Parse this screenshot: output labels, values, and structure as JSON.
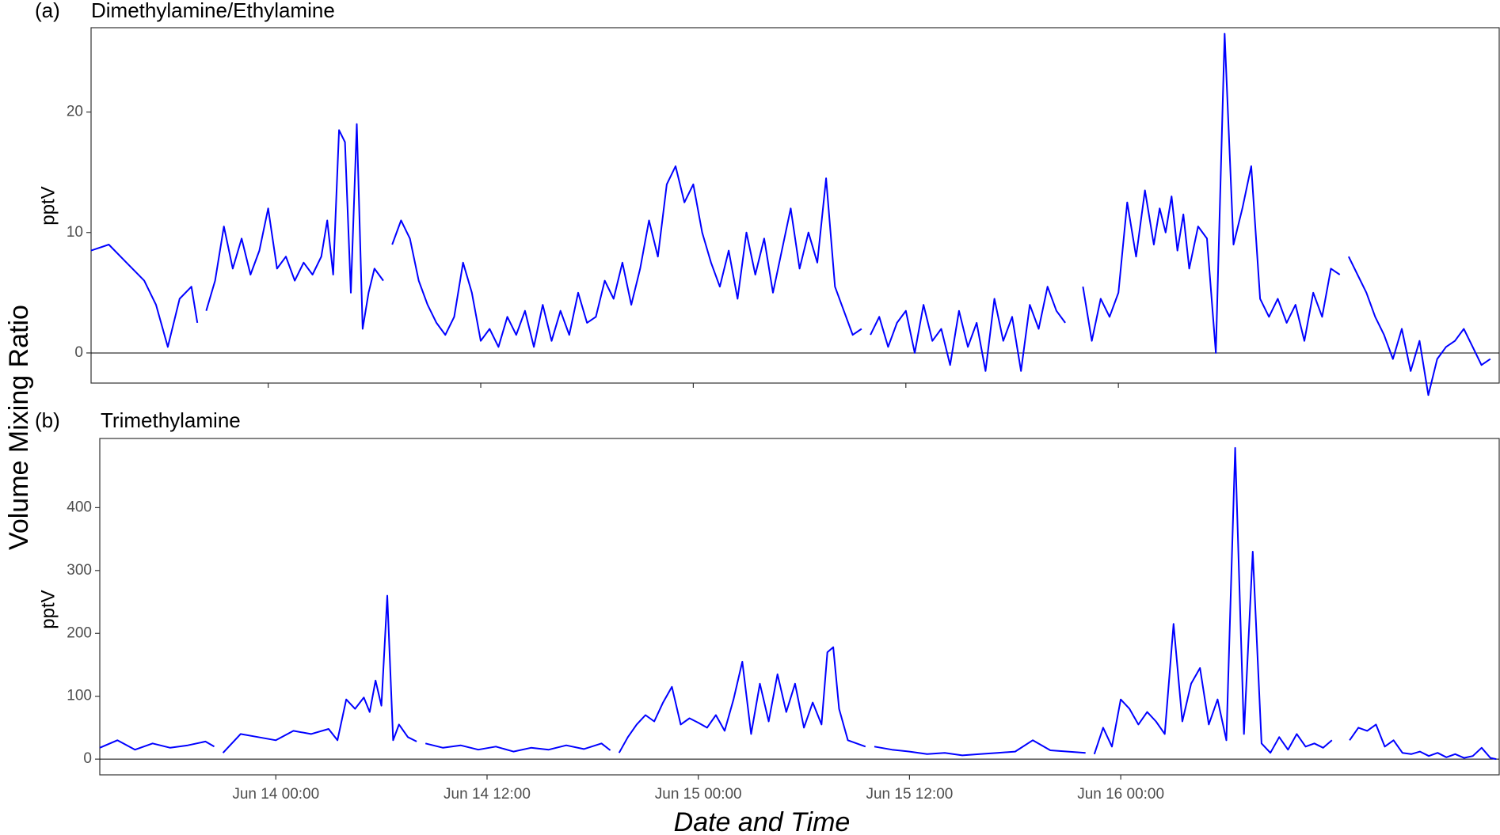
{
  "chart": {
    "shared_ylabel": "Volume Mixing Ratio",
    "xlabel": "Date and Time",
    "x_ticks": [
      "Jun 14 00:00",
      "Jun 14 12:00",
      "Jun 15 00:00",
      "Jun 15 12:00",
      "Jun 16 00:00"
    ],
    "line_color": "#0000ff"
  },
  "chart_data": [
    {
      "type": "line",
      "panel": "(a)",
      "title": "Dimethylamine/Ethylamine",
      "ylabel": "pptV",
      "ylim": [
        -2.5,
        27
      ],
      "yticks": [
        0,
        10,
        20
      ],
      "xlim": [
        "Jun 13 14:00",
        "Jun 16 21:30"
      ],
      "grid": false,
      "zero_line": true,
      "series": [
        {
          "segments": [
            {
              "x": [
                "Jun 13 14:00",
                "Jun 13 15:00",
                "Jun 13 16:00",
                "Jun 13 17:00",
                "Jun 13 17:40",
                "Jun 13 18:20",
                "Jun 13 19:00",
                "Jun 13 19:40",
                "Jun 13 20:00"
              ],
              "y": [
                8.5,
                9.0,
                7.5,
                6.0,
                4.0,
                0.5,
                4.5,
                5.5,
                2.5
              ]
            },
            {
              "x": [
                "Jun 13 20:30",
                "Jun 13 21:00",
                "Jun 13 21:30",
                "Jun 13 22:00",
                "Jun 13 22:30",
                "Jun 13 23:00",
                "Jun 13 23:30",
                "Jun 14 00:00",
                "Jun 14 00:30",
                "Jun 14 01:00",
                "Jun 14 01:30",
                "Jun 14 02:00",
                "Jun 14 02:30",
                "Jun 14 03:00",
                "Jun 14 03:20",
                "Jun 14 03:40",
                "Jun 14 04:00",
                "Jun 14 04:20",
                "Jun 14 04:40",
                "Jun 14 05:00",
                "Jun 14 05:20",
                "Jun 14 05:40",
                "Jun 14 06:00",
                "Jun 14 06:30"
              ],
              "y": [
                3.5,
                6.0,
                10.5,
                7.0,
                9.5,
                6.5,
                8.5,
                12.0,
                7.0,
                8.0,
                6.0,
                7.5,
                6.5,
                8.0,
                11.0,
                6.5,
                18.5,
                17.5,
                5.0,
                19.0,
                2.0,
                5.0,
                7.0,
                6.0
              ]
            },
            {
              "x": [
                "Jun 14 07:00",
                "Jun 14 07:30",
                "Jun 14 08:00",
                "Jun 14 08:30",
                "Jun 14 09:00",
                "Jun 14 09:30",
                "Jun 14 10:00",
                "Jun 14 10:30",
                "Jun 14 11:00",
                "Jun 14 11:30",
                "Jun 14 12:00",
                "Jun 14 12:30",
                "Jun 14 13:00",
                "Jun 14 13:30",
                "Jun 14 14:00",
                "Jun 14 14:30",
                "Jun 14 15:00",
                "Jun 14 15:30",
                "Jun 14 16:00",
                "Jun 14 16:30",
                "Jun 14 17:00",
                "Jun 14 17:30",
                "Jun 14 18:00",
                "Jun 14 18:30",
                "Jun 14 19:00",
                "Jun 14 19:30",
                "Jun 14 20:00",
                "Jun 14 20:30",
                "Jun 14 21:00",
                "Jun 14 21:30",
                "Jun 14 22:00",
                "Jun 14 22:30",
                "Jun 14 23:00",
                "Jun 14 23:30",
                "Jun 15 00:00",
                "Jun 15 00:30",
                "Jun 15 01:00",
                "Jun 15 01:30",
                "Jun 15 02:00",
                "Jun 15 02:30",
                "Jun 15 03:00",
                "Jun 15 03:30",
                "Jun 15 04:00",
                "Jun 15 04:30",
                "Jun 15 05:00",
                "Jun 15 05:30",
                "Jun 15 06:00",
                "Jun 15 06:30",
                "Jun 15 07:00",
                "Jun 15 07:30",
                "Jun 15 08:00",
                "Jun 15 08:30",
                "Jun 15 09:00",
                "Jun 15 09:30"
              ],
              "y": [
                9.0,
                11.0,
                9.5,
                6.0,
                4.0,
                2.5,
                1.5,
                3.0,
                7.5,
                5.0,
                1.0,
                2.0,
                0.5,
                3.0,
                1.5,
                3.5,
                0.5,
                4.0,
                1.0,
                3.5,
                1.5,
                5.0,
                2.5,
                3.0,
                6.0,
                4.5,
                7.5,
                4.0,
                7.0,
                11.0,
                8.0,
                14.0,
                15.5,
                12.5,
                14.0,
                10.0,
                7.5,
                5.5,
                8.5,
                4.5,
                10.0,
                6.5,
                9.5,
                5.0,
                8.5,
                12.0,
                7.0,
                10.0,
                7.5,
                14.5,
                5.5,
                3.5,
                1.5,
                2.0
              ]
            },
            {
              "x": [
                "Jun 15 10:00",
                "Jun 15 10:30",
                "Jun 15 11:00",
                "Jun 15 11:30",
                "Jun 15 12:00",
                "Jun 15 12:30",
                "Jun 15 13:00",
                "Jun 15 13:30",
                "Jun 15 14:00",
                "Jun 15 14:30",
                "Jun 15 15:00",
                "Jun 15 15:30",
                "Jun 15 16:00",
                "Jun 15 16:30",
                "Jun 15 17:00",
                "Jun 15 17:30",
                "Jun 15 18:00",
                "Jun 15 18:30",
                "Jun 15 19:00",
                "Jun 15 19:30",
                "Jun 15 20:00",
                "Jun 15 20:30",
                "Jun 15 21:00"
              ],
              "y": [
                1.5,
                3.0,
                0.5,
                2.5,
                3.5,
                0.0,
                4.0,
                1.0,
                2.0,
                -1.0,
                3.5,
                0.5,
                2.5,
                -1.5,
                4.5,
                1.0,
                3.0,
                -1.5,
                4.0,
                2.0,
                5.5,
                3.5,
                2.5
              ]
            },
            {
              "x": [
                "Jun 15 22:00",
                "Jun 15 22:30",
                "Jun 15 23:00",
                "Jun 15 23:30",
                "Jun 16 00:00",
                "Jun 16 00:30",
                "Jun 16 01:00",
                "Jun 16 01:30",
                "Jun 16 02:00",
                "Jun 16 02:20",
                "Jun 16 02:40",
                "Jun 16 03:00",
                "Jun 16 03:20",
                "Jun 16 03:40",
                "Jun 16 04:00",
                "Jun 16 04:30",
                "Jun 16 05:00",
                "Jun 16 05:30",
                "Jun 16 06:00",
                "Jun 16 06:30",
                "Jun 16 07:00",
                "Jun 16 07:30",
                "Jun 16 08:00",
                "Jun 16 08:30",
                "Jun 16 09:00",
                "Jun 16 09:30",
                "Jun 16 10:00",
                "Jun 16 10:30",
                "Jun 16 11:00",
                "Jun 16 11:30",
                "Jun 16 12:00",
                "Jun 16 12:30"
              ],
              "y": [
                5.5,
                1.0,
                4.5,
                3.0,
                5.0,
                12.5,
                8.0,
                13.5,
                9.0,
                12.0,
                10.0,
                13.0,
                8.5,
                11.5,
                7.0,
                10.5,
                9.5,
                0.0,
                26.5,
                9.0,
                12.0,
                15.5,
                4.5,
                3.0,
                4.5,
                2.5,
                4.0,
                1.0,
                5.0,
                3.0,
                7.0,
                6.5
              ]
            },
            {
              "x": [
                "Jun 16 13:00",
                "Jun 16 13:30",
                "Jun 16 14:00",
                "Jun 16 14:30",
                "Jun 16 15:00",
                "Jun 16 15:30",
                "Jun 16 16:00",
                "Jun 16 16:30",
                "Jun 16 17:00",
                "Jun 16 17:30",
                "Jun 16 18:00",
                "Jun 16 18:30",
                "Jun 16 19:00",
                "Jun 16 19:30",
                "Jun 16 20:00",
                "Jun 16 20:30",
                "Jun 16 21:00"
              ],
              "y": [
                8.0,
                6.5,
                5.0,
                3.0,
                1.5,
                -0.5,
                2.0,
                -1.5,
                1.0,
                -3.5,
                -0.5,
                0.5,
                1.0,
                2.0,
                0.5,
                -1.0,
                -0.5
              ]
            }
          ]
        }
      ]
    },
    {
      "type": "line",
      "panel": "(b)",
      "title": "Trimethylamine",
      "ylabel": "pptV",
      "ylim": [
        -25,
        510
      ],
      "yticks": [
        0,
        100,
        200,
        300,
        400
      ],
      "xlim": [
        "Jun 13 14:00",
        "Jun 16 21:30"
      ],
      "grid": false,
      "zero_line": true,
      "series": [
        {
          "segments": [
            {
              "x": [
                "Jun 13 14:00",
                "Jun 13 15:00",
                "Jun 13 16:00",
                "Jun 13 17:00",
                "Jun 13 18:00",
                "Jun 13 19:00",
                "Jun 13 20:00",
                "Jun 13 20:30"
              ],
              "y": [
                18,
                30,
                15,
                25,
                18,
                22,
                28,
                20
              ]
            },
            {
              "x": [
                "Jun 13 21:00",
                "Jun 13 22:00",
                "Jun 13 23:00",
                "Jun 14 00:00",
                "Jun 14 01:00",
                "Jun 14 02:00",
                "Jun 14 03:00",
                "Jun 14 03:30",
                "Jun 14 04:00",
                "Jun 14 04:30",
                "Jun 14 05:00",
                "Jun 14 05:20",
                "Jun 14 05:40",
                "Jun 14 06:00",
                "Jun 14 06:20",
                "Jun 14 06:40",
                "Jun 14 07:00",
                "Jun 14 07:30",
                "Jun 14 08:00"
              ],
              "y": [
                10,
                40,
                35,
                30,
                45,
                40,
                48,
                30,
                95,
                80,
                98,
                75,
                125,
                85,
                260,
                30,
                55,
                35,
                28
              ]
            },
            {
              "x": [
                "Jun 14 08:30",
                "Jun 14 09:30",
                "Jun 14 10:30",
                "Jun 14 11:30",
                "Jun 14 12:30",
                "Jun 14 13:30",
                "Jun 14 14:30",
                "Jun 14 15:30",
                "Jun 14 16:30",
                "Jun 14 17:30",
                "Jun 14 18:30",
                "Jun 14 19:00"
              ],
              "y": [
                25,
                18,
                22,
                15,
                20,
                12,
                18,
                15,
                22,
                16,
                25,
                14
              ]
            },
            {
              "x": [
                "Jun 14 19:30",
                "Jun 14 20:00",
                "Jun 14 20:30",
                "Jun 14 21:00",
                "Jun 14 21:30",
                "Jun 14 22:00",
                "Jun 14 22:30",
                "Jun 14 23:00",
                "Jun 14 23:30",
                "Jun 15 00:00",
                "Jun 15 00:30",
                "Jun 15 01:00",
                "Jun 15 01:30",
                "Jun 15 02:00",
                "Jun 15 02:30",
                "Jun 15 03:00",
                "Jun 15 03:30",
                "Jun 15 04:00",
                "Jun 15 04:30",
                "Jun 15 05:00",
                "Jun 15 05:30",
                "Jun 15 06:00",
                "Jun 15 06:30",
                "Jun 15 07:00",
                "Jun 15 07:20",
                "Jun 15 07:40",
                "Jun 15 08:00",
                "Jun 15 08:30",
                "Jun 15 09:00",
                "Jun 15 09:30"
              ],
              "y": [
                10,
                35,
                55,
                70,
                60,
                90,
                115,
                55,
                65,
                58,
                50,
                70,
                45,
                95,
                155,
                40,
                120,
                60,
                135,
                75,
                120,
                50,
                90,
                55,
                170,
                178,
                80,
                30,
                25,
                20
              ]
            },
            {
              "x": [
                "Jun 15 10:00",
                "Jun 15 11:00",
                "Jun 15 12:00",
                "Jun 15 13:00",
                "Jun 15 14:00",
                "Jun 15 15:00",
                "Jun 15 16:00",
                "Jun 15 17:00",
                "Jun 15 18:00",
                "Jun 15 19:00",
                "Jun 15 20:00",
                "Jun 15 21:00",
                "Jun 15 22:00"
              ],
              "y": [
                20,
                15,
                12,
                8,
                10,
                6,
                8,
                10,
                12,
                30,
                14,
                12,
                10
              ]
            },
            {
              "x": [
                "Jun 15 22:30",
                "Jun 15 23:00",
                "Jun 15 23:30",
                "Jun 16 00:00",
                "Jun 16 00:30",
                "Jun 16 01:00",
                "Jun 16 01:30",
                "Jun 16 02:00",
                "Jun 16 02:30",
                "Jun 16 03:00",
                "Jun 16 03:30",
                "Jun 16 04:00",
                "Jun 16 04:30",
                "Jun 16 05:00",
                "Jun 16 05:30",
                "Jun 16 06:00",
                "Jun 16 06:30",
                "Jun 16 07:00",
                "Jun 16 07:30",
                "Jun 16 08:00",
                "Jun 16 08:30",
                "Jun 16 09:00",
                "Jun 16 09:30",
                "Jun 16 10:00",
                "Jun 16 10:30",
                "Jun 16 11:00",
                "Jun 16 11:30",
                "Jun 16 12:00"
              ],
              "y": [
                8,
                50,
                20,
                95,
                80,
                55,
                75,
                60,
                40,
                215,
                60,
                120,
                145,
                55,
                95,
                30,
                495,
                40,
                330,
                25,
                10,
                35,
                15,
                40,
                20,
                25,
                18,
                30
              ]
            },
            {
              "x": [
                "Jun 16 13:00",
                "Jun 16 13:30",
                "Jun 16 14:00",
                "Jun 16 14:30",
                "Jun 16 15:00",
                "Jun 16 15:30",
                "Jun 16 16:00",
                "Jun 16 16:30",
                "Jun 16 17:00",
                "Jun 16 17:30",
                "Jun 16 18:00",
                "Jun 16 18:30",
                "Jun 16 19:00",
                "Jun 16 19:30",
                "Jun 16 20:00",
                "Jun 16 20:30",
                "Jun 16 21:00",
                "Jun 16 21:20"
              ],
              "y": [
                30,
                50,
                45,
                55,
                20,
                30,
                10,
                8,
                12,
                5,
                10,
                3,
                8,
                2,
                5,
                18,
                2,
                0
              ]
            }
          ]
        }
      ]
    }
  ]
}
